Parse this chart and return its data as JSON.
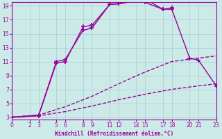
{
  "xlabel": "Windchill (Refroidissement éolien,°C)",
  "bg_color": "#cceae8",
  "grid_color": "#aad4d2",
  "line_color": "#990099",
  "xmin": 0,
  "xmax": 23,
  "ymin": 3,
  "ymax": 19,
  "xticks": [
    0,
    2,
    3,
    5,
    6,
    8,
    9,
    11,
    12,
    14,
    15,
    17,
    18,
    20,
    21,
    23
  ],
  "yticks": [
    3,
    5,
    7,
    9,
    11,
    13,
    15,
    17,
    19
  ],
  "lines": [
    {
      "x": [
        0,
        3,
        6,
        9,
        12,
        15,
        18,
        21,
        23
      ],
      "y": [
        3,
        3.2,
        3.8,
        4.6,
        5.5,
        6.3,
        7.0,
        7.5,
        7.8
      ],
      "style": "--",
      "marker": null,
      "lw": 1.0
    },
    {
      "x": [
        0,
        3,
        6,
        9,
        12,
        15,
        18,
        21,
        23
      ],
      "y": [
        3,
        3.3,
        4.5,
        6.0,
        7.8,
        9.5,
        11.0,
        11.5,
        11.8
      ],
      "style": "--",
      "marker": null,
      "lw": 1.0
    },
    {
      "x": [
        0,
        3,
        5,
        6,
        8,
        9,
        11,
        12,
        14,
        15,
        17,
        18,
        20,
        21,
        23
      ],
      "y": [
        3,
        3.3,
        11.0,
        11.3,
        15.5,
        15.8,
        19.2,
        19.3,
        19.7,
        19.5,
        18.5,
        18.5,
        11.5,
        11.2,
        7.5
      ],
      "style": "-",
      "marker": "+",
      "lw": 1.0
    },
    {
      "x": [
        0,
        3,
        5,
        6,
        8,
        9,
        11,
        12,
        14,
        15,
        17,
        18
      ],
      "y": [
        3,
        3.2,
        10.8,
        11.0,
        16.0,
        16.2,
        19.2,
        19.3,
        19.8,
        20.0,
        18.5,
        18.7
      ],
      "style": "-",
      "marker": "+",
      "lw": 1.0
    }
  ]
}
